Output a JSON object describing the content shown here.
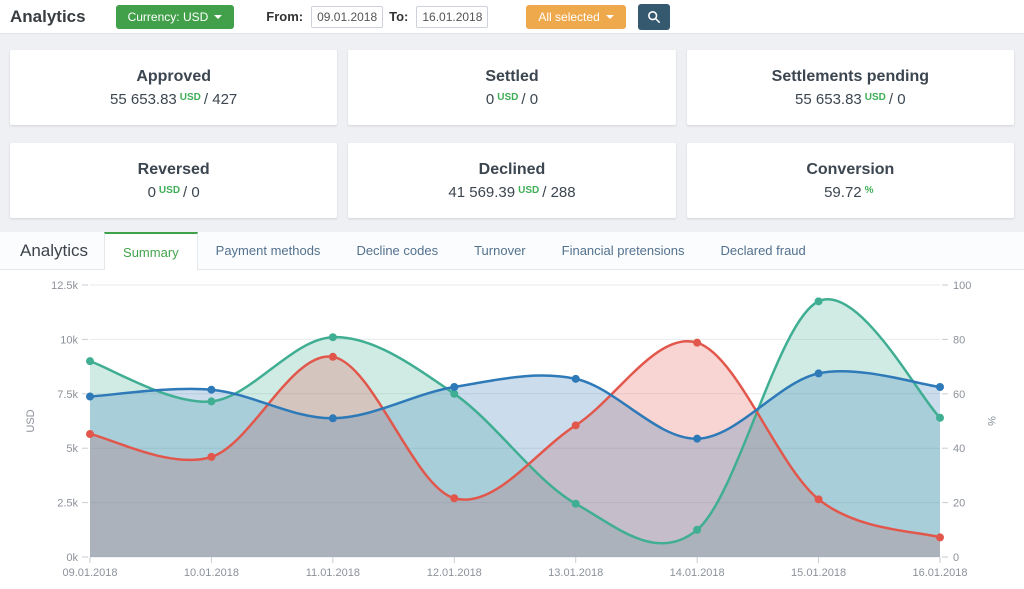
{
  "topbar": {
    "title": "Analytics",
    "currency_button": "Currency: USD",
    "from_label": "From:",
    "from_value": "09.01.2018",
    "to_label": "To:",
    "to_value": "16.01.2018",
    "filter_button": "All selected"
  },
  "cards": [
    {
      "title": "Approved",
      "amount": "55 653.83",
      "currency": "USD",
      "count": "/ 427"
    },
    {
      "title": "Settled",
      "amount": "0",
      "currency": "USD",
      "count": "/ 0"
    },
    {
      "title": "Settlements pending",
      "amount": "55 653.83",
      "currency": "USD",
      "count": "/ 0"
    },
    {
      "title": "Reversed",
      "amount": "0",
      "currency": "USD",
      "count": "/ 0"
    },
    {
      "title": "Declined",
      "amount": "41 569.39",
      "currency": "USD",
      "count": "/ 288"
    },
    {
      "title": "Conversion",
      "amount": "59.72",
      "currency": "%",
      "count": ""
    }
  ],
  "tabs_section": {
    "header": "Analytics",
    "tabs": [
      {
        "label": "Summary",
        "active": true
      },
      {
        "label": "Payment methods",
        "active": false
      },
      {
        "label": "Decline codes",
        "active": false
      },
      {
        "label": "Turnover",
        "active": false
      },
      {
        "label": "Financial pretensions",
        "active": false
      },
      {
        "label": "Declared fraud",
        "active": false
      }
    ]
  },
  "colors": {
    "accent_green": "#41a049",
    "accent_orange": "#efa94d",
    "accent_dark_blue": "#35596f",
    "value_green": "#3fae57",
    "tab_active_green": "#44a44d",
    "tab_link_blue": "#53718e"
  },
  "chart_data": {
    "type": "line",
    "categories": [
      "09.01.2018",
      "10.01.2018",
      "11.01.2018",
      "12.01.2018",
      "13.01.2018",
      "14.01.2018",
      "15.01.2018",
      "16.01.2018"
    ],
    "series": [
      {
        "name": "approved-usd",
        "axis": "left",
        "color": "#3fae92",
        "values": [
          9000,
          7150,
          10100,
          7500,
          2450,
          1250,
          11750,
          6400
        ]
      },
      {
        "name": "declined-usd",
        "axis": "left",
        "color": "#e2574c",
        "values": [
          5650,
          4600,
          9200,
          2700,
          6050,
          9850,
          2650,
          900
        ]
      },
      {
        "name": "conversion-pct",
        "axis": "right",
        "color": "#2e79b8",
        "values": [
          59,
          61.5,
          51,
          62.5,
          65.5,
          43.5,
          67.5,
          62.5
        ]
      }
    ],
    "ylabel_left": "USD",
    "ylabel_right": "%",
    "ylim_left": [
      0,
      12500
    ],
    "ylim_right": [
      0,
      100
    ],
    "yticks_left": [
      "0k",
      "2.5k",
      "5k",
      "7.5k",
      "10k",
      "12.5k"
    ],
    "yticks_right": [
      "0",
      "20",
      "40",
      "60",
      "80",
      "100"
    ],
    "grid": true,
    "legend": "none",
    "fill_opacity": 0.25
  }
}
